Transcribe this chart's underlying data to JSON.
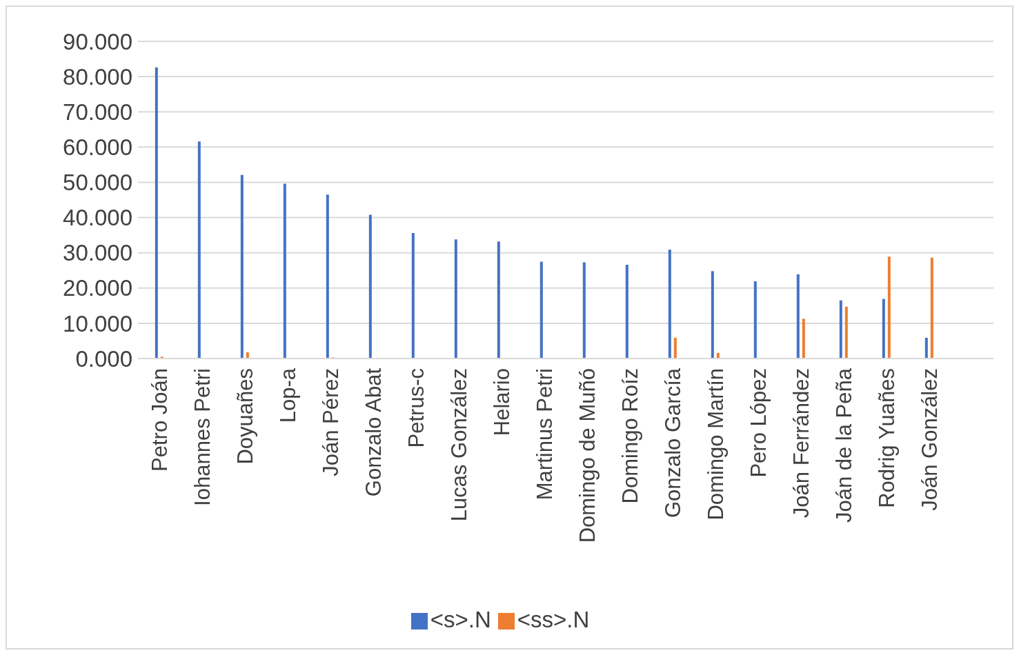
{
  "chart_data": {
    "type": "bar",
    "categories": [
      "Petro Joán",
      "Iohannes Petri",
      "Doyuañes",
      "Lop-a",
      "Joán Pérez",
      "Gonzalo Abat",
      "Petrus-c",
      "Lucas González",
      "Helario",
      "Martinus Petri",
      "Domingo de Muñó",
      "Domingo Roíz",
      "Gonzalo García",
      "Domingo Martín",
      "Pero López",
      "Joán Ferrández",
      "Joán de la Peña",
      "Rodrig Yuañes",
      "Joán González",
      null
    ],
    "series": [
      {
        "name": "<s>.N",
        "color": "#4472c4",
        "values": [
          82.6,
          61.6,
          52.1,
          49.6,
          46.5,
          40.8,
          35.6,
          33.8,
          33.2,
          27.5,
          27.3,
          26.6,
          30.9,
          24.8,
          21.9,
          23.9,
          16.5,
          16.9,
          5.9,
          null
        ]
      },
      {
        "name": "<ss>.N",
        "color": "#ed7d31",
        "values": [
          0.5,
          null,
          1.8,
          null,
          0.3,
          null,
          null,
          null,
          null,
          null,
          null,
          null,
          5.9,
          1.6,
          null,
          11.3,
          14.7,
          28.9,
          28.6,
          null
        ]
      }
    ],
    "ylim": [
      0,
      90
    ],
    "yticks": [
      {
        "value": 0,
        "label": "0.000"
      },
      {
        "value": 10,
        "label": "10.000"
      },
      {
        "value": 20,
        "label": "20.000"
      },
      {
        "value": 30,
        "label": "30.000"
      },
      {
        "value": 40,
        "label": "40.000"
      },
      {
        "value": 50,
        "label": "50.000"
      },
      {
        "value": 60,
        "label": "60.000"
      },
      {
        "value": 70,
        "label": "70.000"
      },
      {
        "value": 80,
        "label": "80.000"
      },
      {
        "value": 90,
        "label": "90.000"
      }
    ],
    "grid": "y",
    "legend": "bottom"
  }
}
